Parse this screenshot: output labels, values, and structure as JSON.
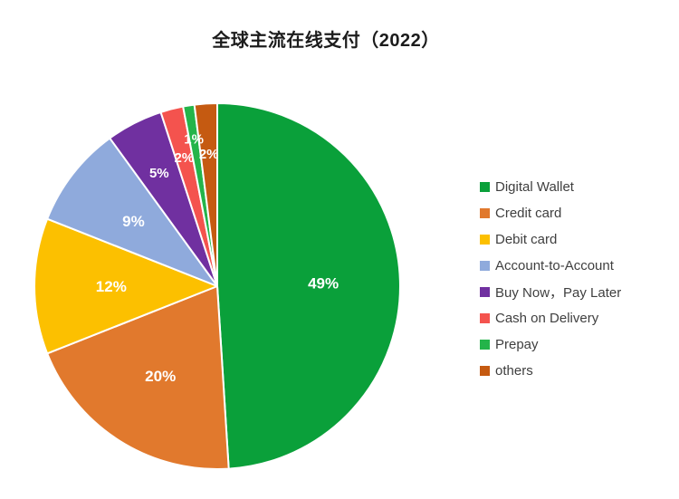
{
  "title": "全球主流在线支付（2022）",
  "chart_data": {
    "type": "pie",
    "title": "全球主流在线支付（2022）",
    "start_angle_deg": 0,
    "direction": "clockwise",
    "legend_position": "right",
    "total": 100,
    "slices": [
      {
        "label": "Digital Wallet",
        "value": 49,
        "display": "49%",
        "color": "#0aa03a"
      },
      {
        "label": "Credit card",
        "value": 20,
        "display": "20%",
        "color": "#e1792d"
      },
      {
        "label": "Debit card",
        "value": 12,
        "display": "12%",
        "color": "#fcc000"
      },
      {
        "label": "Account-to-Account",
        "value": 9,
        "display": "9%",
        "color": "#8faadc"
      },
      {
        "label": "Buy Now，Pay Later",
        "value": 5,
        "display": "5%",
        "color": "#7030a0"
      },
      {
        "label": "Cash on Delivery",
        "value": 2,
        "display": "2%",
        "color": "#f4534e"
      },
      {
        "label": "Prepay",
        "value": 1,
        "display": "1%",
        "color": "#24b44a"
      },
      {
        "label": "others",
        "value": 2,
        "display": "2%",
        "color": "#c55a11"
      }
    ]
  }
}
